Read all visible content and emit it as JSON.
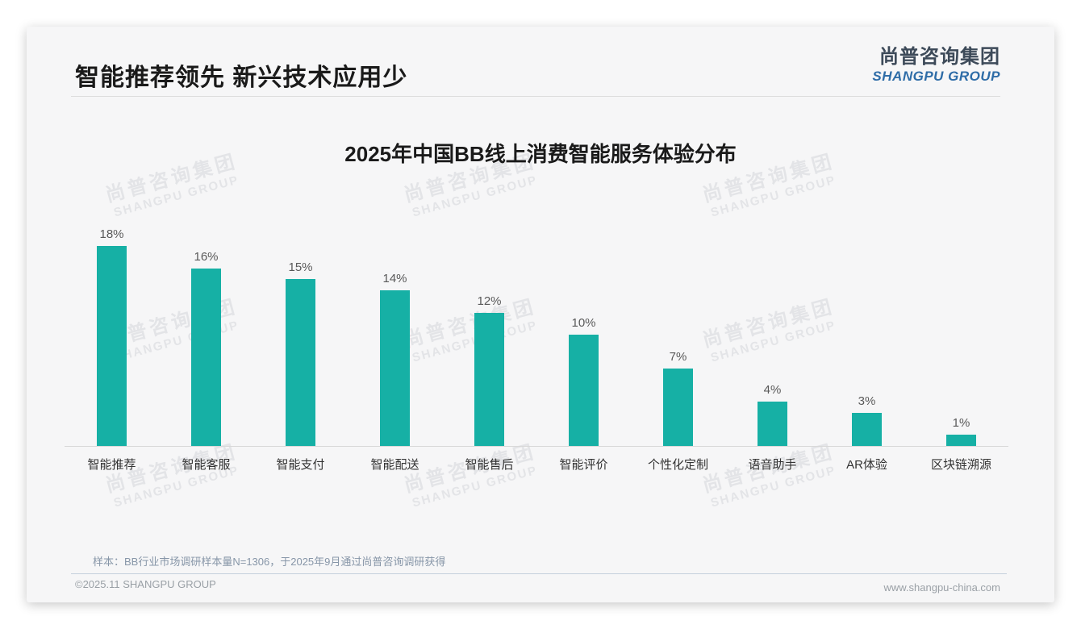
{
  "page": {
    "main_title": "智能推荐领先 新兴技术应用少",
    "logo": {
      "zh": "尚普咨询集团",
      "en": "SHANGPU GROUP"
    },
    "watermark": {
      "zh": "尚普咨询集团",
      "en": "SHANGPU GROUP"
    },
    "footnote": "样本：BB行业市场调研样本量N=1306，于2025年9月通过尚普咨询调研获得",
    "footer_left": "©2025.11 SHANGPU GROUP",
    "footer_right": "www.shangpu-china.com"
  },
  "colors": {
    "bar": "#16b0a5",
    "logo_dark": "#3d4a59",
    "logo_blue": "#2e6ca7",
    "title": "#1a1a1a",
    "footnote": "#8796a8",
    "footer": "#9aa0a6"
  },
  "chart_data": {
    "type": "bar",
    "title": "2025年中国BB线上消费智能服务体验分布",
    "categories": [
      "智能推荐",
      "智能客服",
      "智能支付",
      "智能配送",
      "智能售后",
      "智能评价",
      "个性化定制",
      "语音助手",
      "AR体验",
      "区块链溯源"
    ],
    "values": [
      18,
      16,
      15,
      14,
      12,
      10,
      7,
      4,
      3,
      1
    ],
    "value_labels": [
      "18%",
      "16%",
      "15%",
      "14%",
      "12%",
      "10%",
      "7%",
      "4%",
      "3%",
      "1%"
    ],
    "unit": "%",
    "xlabel": "",
    "ylabel": "",
    "ylim": [
      0,
      18
    ],
    "grid": false,
    "legend_position": "none",
    "bar_color": "#16b0a5"
  }
}
